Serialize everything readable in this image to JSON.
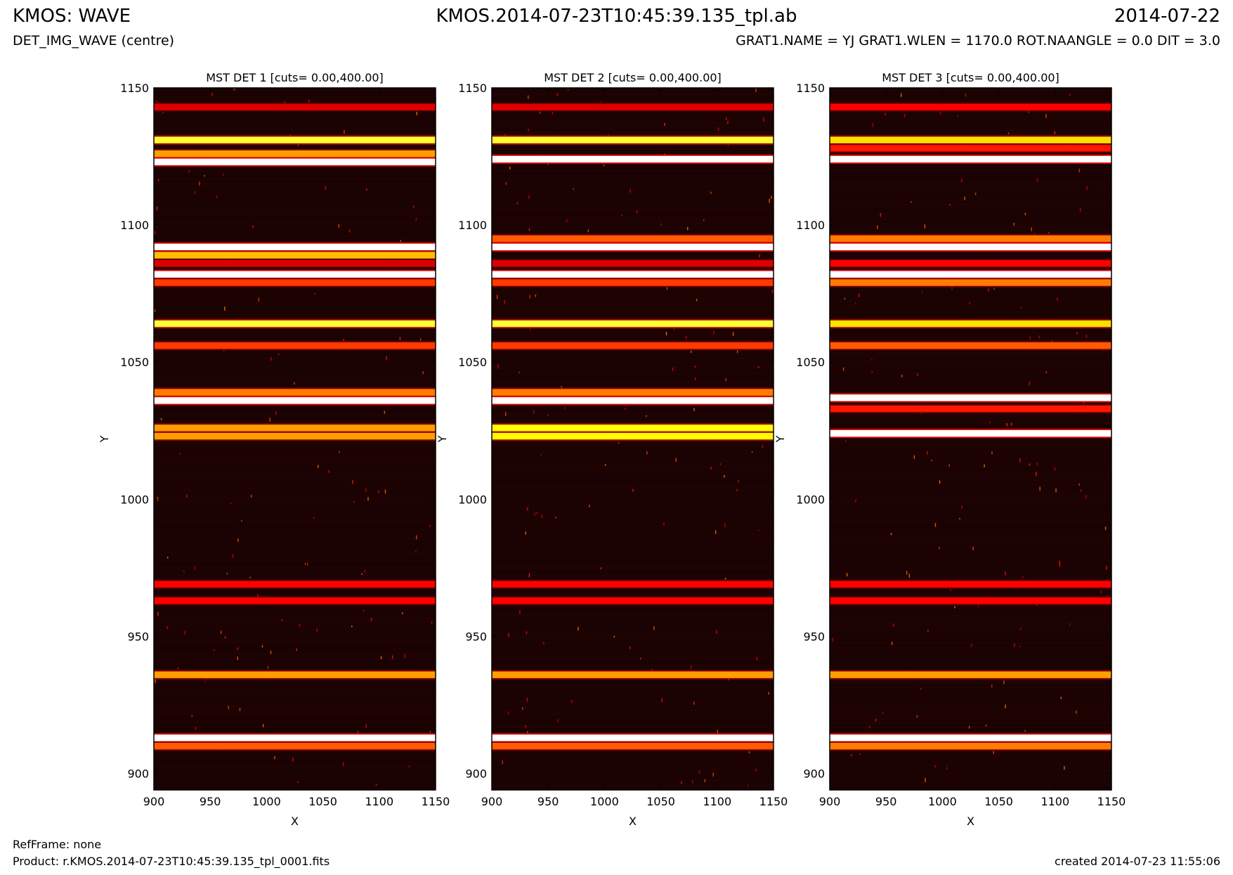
{
  "header": {
    "title_left": "KMOS: WAVE",
    "title_center": "KMOS.2014-07-23T10:45:39.135_tpl.ab",
    "title_right": "2014-07-22",
    "subtitle_left": "DET_IMG_WAVE (centre)",
    "subtitle_right": "GRAT1.NAME = YJ GRAT1.WLEN = 1170.0 ROT.NAANGLE = 0.0 DIT = 3.0"
  },
  "footer": {
    "refframe": "RefFrame: none",
    "product": "Product: r.KMOS.2014-07-23T10:45:39.135_tpl_0001.fits",
    "created": "created 2014-07-23 11:55:06"
  },
  "colors": {
    "colormap": "hot",
    "background": "#1a0303"
  },
  "chart_data": [
    {
      "type": "heatmap",
      "title": "MST DET 1 [cuts= 0.00,400.00]",
      "xlabel": "X",
      "ylabel": "Y",
      "xlim": [
        900,
        1150
      ],
      "ylim": [
        894,
        1150
      ],
      "xticks": [
        900,
        950,
        1000,
        1050,
        1100,
        1150
      ],
      "yticks": [
        900,
        950,
        1000,
        1050,
        1100,
        1150
      ],
      "value_range": [
        0,
        400
      ],
      "lines": [
        {
          "y": 1143,
          "level": 0.3
        },
        {
          "y": 1131,
          "level": 0.8
        },
        {
          "y": 1126,
          "level": 0.6
        },
        {
          "y": 1123,
          "level": 1.0
        },
        {
          "y": 1092,
          "level": 1.0
        },
        {
          "y": 1089,
          "level": 0.65
        },
        {
          "y": 1086,
          "level": 0.3
        },
        {
          "y": 1082,
          "level": 1.0
        },
        {
          "y": 1079,
          "level": 0.45
        },
        {
          "y": 1064,
          "level": 0.8
        },
        {
          "y": 1056,
          "level": 0.45
        },
        {
          "y": 1039,
          "level": 0.55
        },
        {
          "y": 1036,
          "level": 1.0
        },
        {
          "y": 1026,
          "level": 0.6
        },
        {
          "y": 1023,
          "level": 0.6
        },
        {
          "y": 969,
          "level": 0.35
        },
        {
          "y": 963,
          "level": 0.35
        },
        {
          "y": 936,
          "level": 0.6
        },
        {
          "y": 913,
          "level": 1.0
        },
        {
          "y": 910,
          "level": 0.5
        }
      ]
    },
    {
      "type": "heatmap",
      "title": "MST DET 2 [cuts= 0.00,400.00]",
      "xlabel": "X",
      "ylabel": "Y",
      "xlim": [
        900,
        1150
      ],
      "ylim": [
        894,
        1150
      ],
      "xticks": [
        900,
        950,
        1000,
        1050,
        1100,
        1150
      ],
      "yticks": [
        900,
        950,
        1000,
        1050,
        1100,
        1150
      ],
      "value_range": [
        0,
        400
      ],
      "lines": [
        {
          "y": 1143,
          "level": 0.3
        },
        {
          "y": 1131,
          "level": 0.8
        },
        {
          "y": 1124,
          "level": 1.0
        },
        {
          "y": 1095,
          "level": 0.5
        },
        {
          "y": 1092,
          "level": 1.0
        },
        {
          "y": 1086,
          "level": 0.3
        },
        {
          "y": 1082,
          "level": 1.0
        },
        {
          "y": 1079,
          "level": 0.45
        },
        {
          "y": 1064,
          "level": 0.8
        },
        {
          "y": 1056,
          "level": 0.45
        },
        {
          "y": 1039,
          "level": 0.55
        },
        {
          "y": 1036,
          "level": 1.0
        },
        {
          "y": 1026,
          "level": 0.75
        },
        {
          "y": 1023,
          "level": 0.75
        },
        {
          "y": 969,
          "level": 0.35
        },
        {
          "y": 963,
          "level": 0.35
        },
        {
          "y": 936,
          "level": 0.6
        },
        {
          "y": 913,
          "level": 1.0
        },
        {
          "y": 910,
          "level": 0.5
        }
      ]
    },
    {
      "type": "heatmap",
      "title": "MST DET 3 [cuts= 0.00,400.00]",
      "xlabel": "X",
      "ylabel": "Y",
      "xlim": [
        900,
        1150
      ],
      "ylim": [
        894,
        1150
      ],
      "xticks": [
        900,
        950,
        1000,
        1050,
        1100,
        1150
      ],
      "yticks": [
        900,
        950,
        1000,
        1050,
        1100,
        1150
      ],
      "value_range": [
        0,
        400
      ],
      "lines": [
        {
          "y": 1143,
          "level": 0.35
        },
        {
          "y": 1131,
          "level": 0.7
        },
        {
          "y": 1128,
          "level": 0.4
        },
        {
          "y": 1124,
          "level": 1.0
        },
        {
          "y": 1095,
          "level": 0.55
        },
        {
          "y": 1092,
          "level": 1.0
        },
        {
          "y": 1086,
          "level": 0.35
        },
        {
          "y": 1082,
          "level": 1.0
        },
        {
          "y": 1079,
          "level": 0.55
        },
        {
          "y": 1064,
          "level": 0.7
        },
        {
          "y": 1056,
          "level": 0.5
        },
        {
          "y": 1037,
          "level": 1.0
        },
        {
          "y": 1033,
          "level": 0.4
        },
        {
          "y": 1024,
          "level": 1.0
        },
        {
          "y": 969,
          "level": 0.35
        },
        {
          "y": 963,
          "level": 0.35
        },
        {
          "y": 936,
          "level": 0.6
        },
        {
          "y": 913,
          "level": 1.0
        },
        {
          "y": 910,
          "level": 0.55
        }
      ]
    }
  ]
}
